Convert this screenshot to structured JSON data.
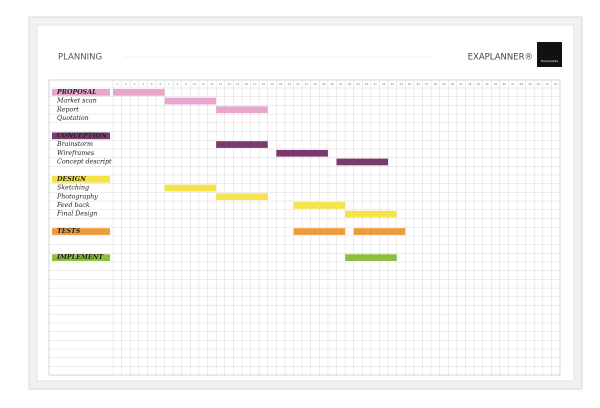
{
  "header": {
    "title": "PLANNING",
    "brand": "EXAPLANNER®",
    "logo": "Exacompta"
  },
  "columns": [
    1,
    2,
    3,
    4,
    5,
    6,
    7,
    8,
    9,
    10,
    11,
    12,
    13,
    14,
    15,
    16,
    17,
    18,
    19,
    20,
    21,
    22,
    23,
    24,
    25,
    26,
    27,
    28,
    29,
    30,
    31,
    32,
    33,
    34,
    35,
    36,
    37,
    38,
    39,
    40,
    41,
    42,
    43,
    44,
    45,
    46,
    47,
    48,
    49,
    50,
    51,
    52
  ],
  "rows": [
    {
      "label": "PROPOSAL",
      "color": "#e8a6cf",
      "bars": [
        {
          "start": 1,
          "end": 6
        }
      ]
    },
    {
      "label": "Market scan",
      "bars": [
        {
          "start": 7,
          "end": 12
        }
      ]
    },
    {
      "label": "Report",
      "bars": [
        {
          "start": 13,
          "end": 18
        }
      ]
    },
    {
      "label": "Quotation"
    },
    null,
    {
      "label": "CONCEPTION",
      "color": "#7b3a6e"
    },
    {
      "label": "Brainstorm",
      "bars": [
        {
          "start": 13,
          "end": 18
        }
      ]
    },
    {
      "label": "Wireframes",
      "bars": [
        {
          "start": 20,
          "end": 25
        }
      ]
    },
    {
      "label": "Concept descript",
      "bars": [
        {
          "start": 27,
          "end": 32
        }
      ]
    },
    null,
    {
      "label": "DESIGN",
      "color": "#f6e34a"
    },
    {
      "label": "Sketching",
      "bars": [
        {
          "start": 7,
          "end": 12
        }
      ]
    },
    {
      "label": "Photography",
      "bars": [
        {
          "start": 13,
          "end": 18
        }
      ]
    },
    {
      "label": "Feed back",
      "bars": [
        {
          "start": 22,
          "end": 27
        }
      ]
    },
    {
      "label": "Final Design",
      "bars": [
        {
          "start": 28,
          "end": 33
        }
      ]
    },
    null,
    {
      "label": "TESTS",
      "color": "#ee9b3c",
      "bars": [
        {
          "start": 22,
          "end": 27
        },
        {
          "start": 29,
          "end": 34
        }
      ]
    },
    null,
    null,
    {
      "label": "IMPLEMENT",
      "color": "#8dbf3f",
      "bars": [
        {
          "start": 28,
          "end": 33
        }
      ]
    },
    null,
    null,
    null,
    null,
    null,
    null,
    null,
    null,
    null,
    null,
    null,
    null,
    null
  ]
}
